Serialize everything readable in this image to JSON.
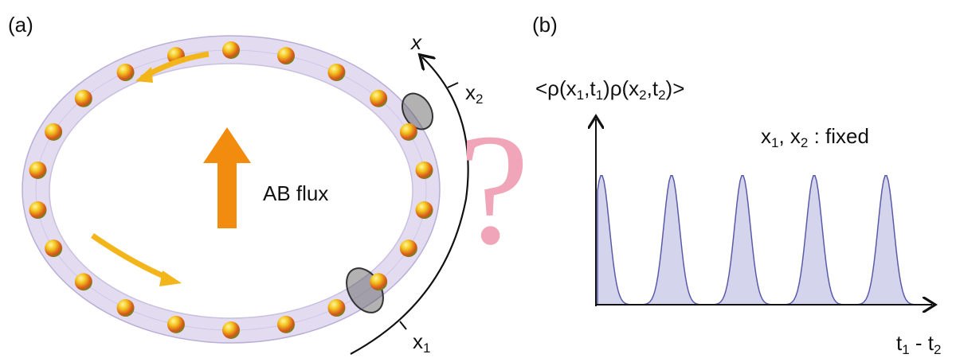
{
  "panel_a": {
    "label": "(a)",
    "flux_label": "AB flux",
    "axis_label": "x",
    "points": [
      [
        {
          "t": "x"
        },
        {
          "s": "1"
        }
      ],
      [
        {
          "t": "x"
        },
        {
          "s": "2"
        }
      ]
    ]
  },
  "question": "?",
  "panel_b": {
    "label": "(b)",
    "y_label": [
      {
        "t": "<ρ(x"
      },
      {
        "s": "1"
      },
      {
        "t": ",t"
      },
      {
        "s": "1"
      },
      {
        "t": ")ρ(x"
      },
      {
        "s": "2"
      },
      {
        "t": ",t"
      },
      {
        "s": "2"
      },
      {
        "t": ")>"
      }
    ],
    "annotation": [
      {
        "t": "x"
      },
      {
        "s": "1"
      },
      {
        "t": ", x"
      },
      {
        "s": "2"
      },
      {
        "t": " : fixed"
      }
    ],
    "x_label": [
      {
        "t": "t"
      },
      {
        "s": "1"
      },
      {
        "t": " - t"
      },
      {
        "s": "2"
      }
    ]
  }
}
